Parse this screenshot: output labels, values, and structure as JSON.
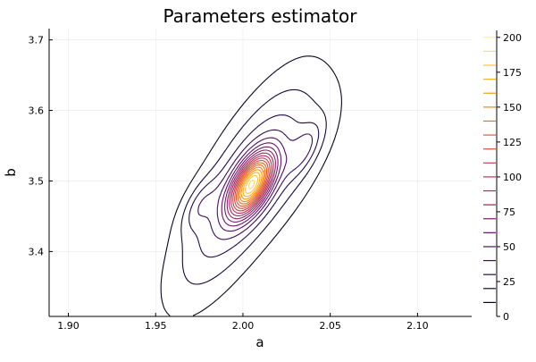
{
  "chart_data": {
    "type": "contour",
    "title": "Parameters estimator",
    "xlabel": "a",
    "ylabel": "b",
    "xlim": [
      1.889,
      2.131
    ],
    "ylim": [
      3.308,
      3.716
    ],
    "xticks": [
      1.9,
      1.95,
      2.0,
      2.05,
      2.1
    ],
    "xtick_labels": [
      "1.90",
      "1.95",
      "2.00",
      "2.05",
      "2.10"
    ],
    "yticks": [
      3.4,
      3.5,
      3.6,
      3.7
    ],
    "ytick_labels": [
      "3.4",
      "3.5",
      "3.6",
      "3.7"
    ],
    "grid": true,
    "density_peak": {
      "a": 2.005,
      "b": 3.495,
      "value": 200
    },
    "secondary_peak": {
      "a": 2.035,
      "b": 3.545
    },
    "contour_levels": [
      10,
      20,
      30,
      40,
      50,
      60,
      70,
      80,
      90,
      100,
      110,
      120,
      130,
      140,
      150,
      160,
      170,
      180,
      190,
      200
    ],
    "colorbar": {
      "range": [
        0,
        205
      ],
      "ticks": [
        0,
        25,
        50,
        75,
        100,
        125,
        150,
        175,
        200
      ],
      "tick_labels": [
        "0",
        "25",
        "50",
        "75",
        "100",
        "125",
        "150",
        "175",
        "200"
      ],
      "colormap": "inferno"
    }
  }
}
